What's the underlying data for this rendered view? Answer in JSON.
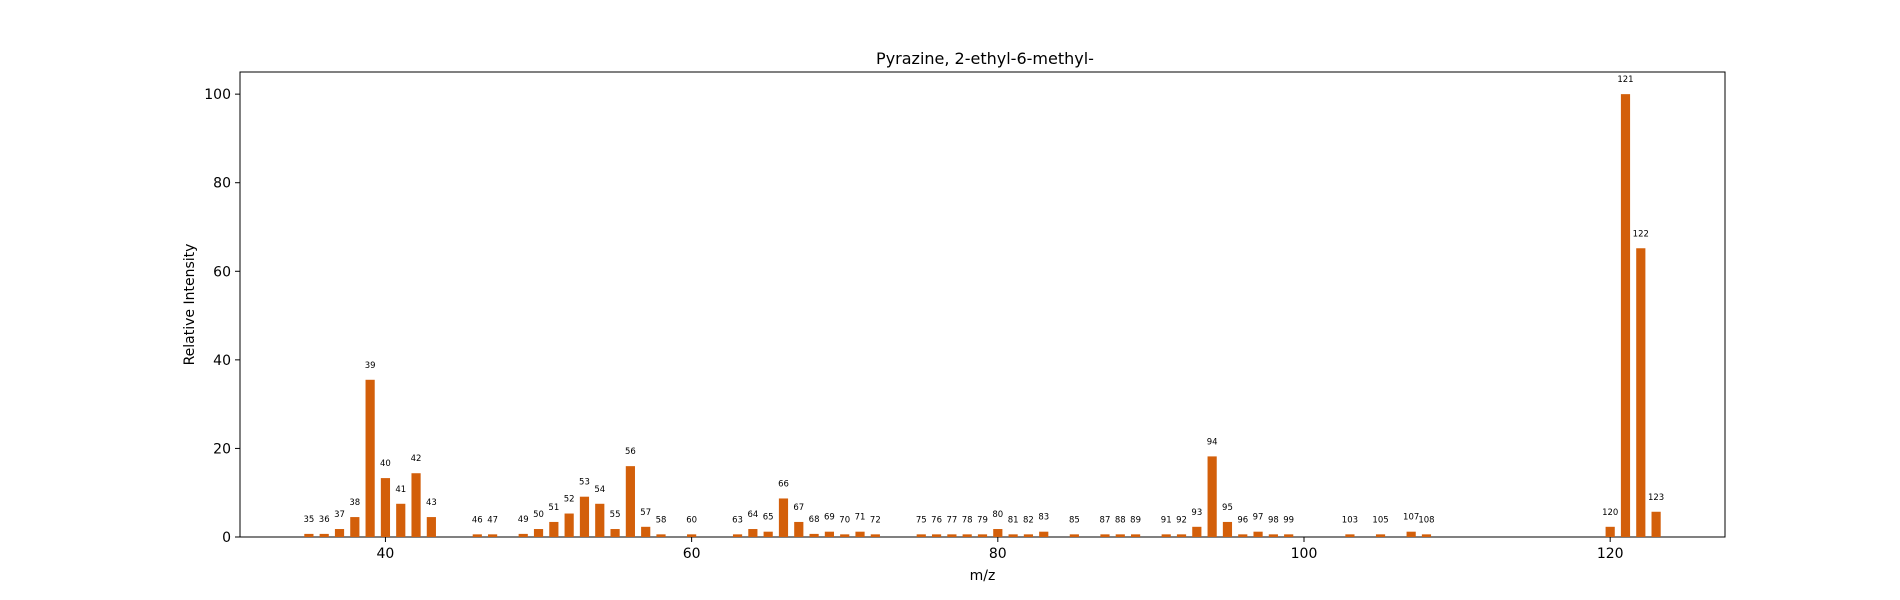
{
  "chart_data": {
    "type": "bar",
    "title": "Pyrazine, 2-ethyl-6-methyl-",
    "xlabel": "m/z",
    "ylabel": "Relative Intensity",
    "xlim": [
      30.5,
      127.5
    ],
    "ylim": [
      0,
      105
    ],
    "xticks": [
      40,
      60,
      80,
      100,
      120
    ],
    "yticks": [
      0,
      20,
      40,
      60,
      80,
      100
    ],
    "grid": false,
    "bar_color": "#d35f0a",
    "x": [
      35,
      36,
      37,
      38,
      39,
      40,
      41,
      42,
      43,
      46,
      47,
      49,
      50,
      51,
      52,
      53,
      54,
      55,
      56,
      57,
      58,
      60,
      63,
      64,
      65,
      66,
      67,
      68,
      69,
      70,
      71,
      72,
      75,
      76,
      77,
      78,
      79,
      80,
      81,
      82,
      83,
      85,
      87,
      88,
      89,
      91,
      92,
      93,
      94,
      95,
      96,
      97,
      98,
      99,
      103,
      105,
      107,
      108,
      120,
      121,
      122,
      123
    ],
    "values": [
      0.7,
      0.7,
      1.8,
      4.5,
      35.5,
      13.3,
      7.5,
      14.4,
      4.5,
      0.6,
      0.6,
      0.7,
      1.8,
      3.4,
      5.3,
      9.1,
      7.5,
      1.8,
      16,
      2.3,
      0.6,
      0.6,
      0.6,
      1.8,
      1.2,
      8.7,
      3.4,
      0.7,
      1.2,
      0.6,
      1.2,
      0.6,
      0.6,
      0.6,
      0.6,
      0.6,
      0.6,
      1.8,
      0.6,
      0.6,
      1.2,
      0.6,
      0.6,
      0.6,
      0.6,
      0.6,
      0.6,
      2.3,
      18.2,
      3.4,
      0.6,
      1.2,
      0.6,
      0.6,
      0.6,
      0.6,
      1.2,
      0.6,
      2.3,
      100,
      65.2,
      5.7
    ],
    "labels": [
      "35",
      "36",
      "37",
      "38",
      "39",
      "40",
      "41",
      "42",
      "43",
      "46",
      "47",
      "49",
      "50",
      "51",
      "52",
      "53",
      "54",
      "55",
      "56",
      "57",
      "58",
      "60",
      "63",
      "64",
      "65",
      "66",
      "67",
      "68",
      "69",
      "70",
      "71",
      "72",
      "75",
      "76",
      "77",
      "78",
      "79",
      "80",
      "81",
      "82",
      "83",
      "85",
      "87",
      "88",
      "89",
      "91",
      "92",
      "93",
      "94",
      "95",
      "96",
      "97",
      "98",
      "99",
      "103",
      "105",
      "107",
      "108",
      "120",
      "121",
      "122",
      "123"
    ]
  }
}
